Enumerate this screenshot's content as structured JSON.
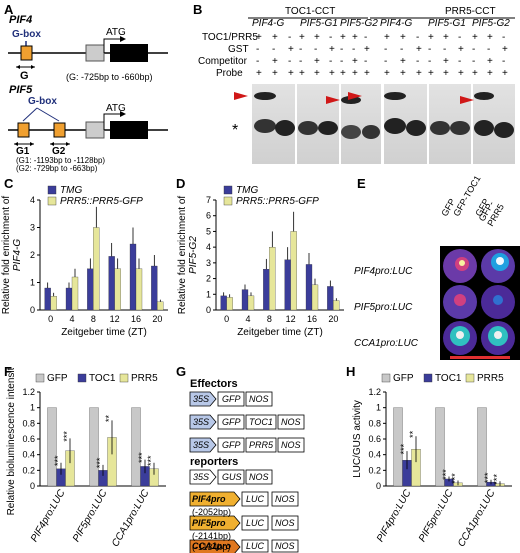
{
  "panels": {
    "A": "A",
    "B": "B",
    "C": "C",
    "D": "D",
    "E": "E",
    "F": "F",
    "G": "G",
    "H": "H"
  },
  "panelA": {
    "gene1": "PIF4",
    "gbox1": "G-box",
    "atg1": "ATG",
    "g_label": "G",
    "g_range": "(G: -725bp to -660bp)",
    "gene2": "PIF5",
    "gbox2": "G-box",
    "atg2": "ATG",
    "g1_label": "G1",
    "g2_label": "G2",
    "g1_range": "(G1: -1193bp to -1128bp)",
    "g2_range": "(G2: -729bp to -663bp)"
  },
  "panelB": {
    "group1": "TOC1-CCT",
    "group2": "PRR5-CCT",
    "lanes": [
      "PIF4-G",
      "PIF5-G1",
      "PIF5-G2",
      "PIF4-G",
      "PIF5-G1",
      "PIF5-G2"
    ],
    "rows": [
      "TOC1/PRR5",
      "GST",
      "Competitor",
      "Probe"
    ],
    "plus": "+",
    "minus": "-",
    "star": "*",
    "signs": [
      [
        "+",
        "+",
        "-"
      ],
      [
        "-",
        "-",
        "+"
      ],
      [
        "-",
        "+",
        "-"
      ],
      [
        "+",
        "+",
        "+"
      ]
    ]
  },
  "chart_data": [
    {
      "type": "bar",
      "panel": "C",
      "ylabel": "Relative fold enrichment of PIF4-G",
      "xlabel": "Zeitgeber time (ZT)",
      "categories": [
        "0",
        "4",
        "8",
        "12",
        "16",
        "20"
      ],
      "ylim": [
        0,
        4
      ],
      "yticks": [
        "0",
        "1",
        "2",
        "3",
        "4"
      ],
      "series": [
        {
          "name": "TMG",
          "color": "#3b3d9a",
          "values": [
            0.8,
            0.8,
            1.5,
            1.95,
            2.4,
            1.6
          ]
        },
        {
          "name": "PRR5::PRR5-GFP",
          "color": "#e6e69a",
          "values": [
            0.5,
            1.2,
            3.0,
            1.5,
            1.5,
            0.3
          ]
        }
      ]
    },
    {
      "type": "bar",
      "panel": "D",
      "ylabel": "Relative fold enrichment of PIF5-G2",
      "xlabel": "Zeitgeber time (ZT)",
      "categories": [
        "0",
        "4",
        "8",
        "12",
        "16",
        "20"
      ],
      "ylim": [
        0,
        7
      ],
      "yticks": [
        "0",
        "1",
        "2",
        "3",
        "4",
        "5",
        "6",
        "7"
      ],
      "series": [
        {
          "name": "TMG",
          "color": "#3b3d9a",
          "values": [
            0.9,
            1.3,
            2.6,
            3.2,
            2.9,
            1.5
          ]
        },
        {
          "name": "PRR5::PRR5-GFP",
          "color": "#e6e69a",
          "values": [
            0.8,
            0.9,
            4.0,
            5.0,
            1.6,
            0.6
          ]
        }
      ]
    },
    {
      "type": "bar",
      "panel": "F",
      "ylabel": "Relative bioluminescence intensity",
      "categories": [
        "PIF4pro:LUC",
        "PIF5pro:LUC",
        "CCA1pro:LUC"
      ],
      "ylim": [
        0,
        1.2
      ],
      "yticks": [
        "0",
        "0.2",
        "0.4",
        "0.6",
        "0.8",
        "1",
        "1.2"
      ],
      "series": [
        {
          "name": "GFP",
          "color": "#c8c8c8",
          "values": [
            1,
            1,
            1
          ]
        },
        {
          "name": "TOC1",
          "color": "#3b3d9a",
          "values": [
            0.22,
            0.2,
            0.25
          ]
        },
        {
          "name": "PRR5",
          "color": "#e6e69a",
          "values": [
            0.45,
            0.62,
            0.22
          ]
        }
      ],
      "stars": [
        [
          "***",
          "***"
        ],
        [
          "***",
          "**"
        ],
        [
          "***",
          "***"
        ]
      ]
    },
    {
      "type": "bar",
      "panel": "H",
      "ylabel": "LUC/GUS activity",
      "categories": [
        "PIF4pro:LUC",
        "PIF5pro:LUC",
        "CCA1pro:LUC"
      ],
      "ylim": [
        0,
        1.2
      ],
      "yticks": [
        "0",
        "0.2",
        "0.4",
        "0.6",
        "0.8",
        "1",
        "1.2"
      ],
      "series": [
        {
          "name": "GFP",
          "color": "#c8c8c8",
          "values": [
            1,
            1,
            1
          ]
        },
        {
          "name": "TOC1",
          "color": "#3b3d9a",
          "values": [
            0.33,
            0.09,
            0.05
          ]
        },
        {
          "name": "PRR5",
          "color": "#e6e69a",
          "values": [
            0.47,
            0.04,
            0.03
          ]
        }
      ],
      "stars": [
        [
          "***",
          "**"
        ],
        [
          "***",
          "***"
        ],
        [
          "***",
          "***"
        ]
      ]
    }
  ],
  "panelE": {
    "cols": [
      "GFP",
      "GFP-TOC1",
      "GFP",
      "GFP-PRR5"
    ],
    "rows": [
      "PIF4pro:LUC",
      "PIF5pro:LUC",
      "CCA1pro:LUC"
    ]
  },
  "panelG": {
    "effectors": "Effectors",
    "reporters": "reporters",
    "e1": [
      "35S",
      "GFP",
      "NOS"
    ],
    "e2": [
      "35S",
      "GFP",
      "TOC1",
      "NOS"
    ],
    "e3": [
      "35S",
      "GFP",
      "PRR5",
      "NOS"
    ],
    "r0": [
      "35S",
      "GUS",
      "NOS"
    ],
    "r1": [
      "PIF4pro",
      "LUC",
      "NOS",
      "(-2052bp)"
    ],
    "r2": [
      "PIF5pro",
      "LUC",
      "NOS",
      "(-2141bp)"
    ],
    "r3": [
      "CCA1pro",
      "LUC",
      "NOS",
      "(-1134bp)"
    ]
  }
}
